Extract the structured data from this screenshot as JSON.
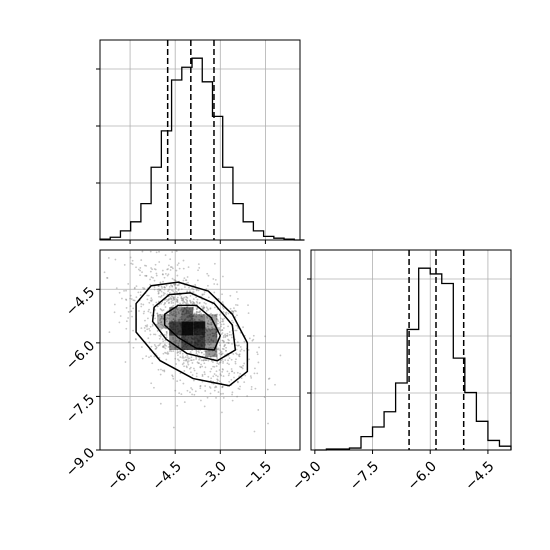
{
  "chart_data": [
    {
      "type": "histogram",
      "panel": "top-left",
      "x": [
        -7.0,
        -6.66,
        -6.32,
        -5.98,
        -5.64,
        -5.3,
        -4.96,
        -4.62,
        -4.28,
        -3.94,
        -3.6,
        -3.26,
        -2.92,
        -2.58,
        -2.24,
        -1.9,
        -1.56,
        -1.22,
        -0.88,
        -0.54
      ],
      "values": [
        0.5,
        1.5,
        5,
        10,
        20,
        40,
        60,
        88,
        95,
        100,
        87,
        68,
        40,
        20,
        10,
        5,
        2,
        1,
        0.5,
        0
      ],
      "xlim": [
        -7.0,
        -0.35
      ],
      "quantile_lines": [
        -4.75,
        -3.98,
        -3.21
      ],
      "grid": true,
      "y_ticks_unlabeled": 3
    },
    {
      "type": "heatmap",
      "panel": "bottom-left",
      "xlim": [
        -7.0,
        -0.35
      ],
      "ylim": [
        -9.0,
        -3.4
      ],
      "x_ticks": [
        "−6.0",
        "−4.5",
        "−3.0",
        "−1.5"
      ],
      "x_tick_values": [
        -6.0,
        -4.5,
        -3.0,
        -1.5
      ],
      "y_ticks": [
        "−4.5",
        "−6.0",
        "−7.5",
        "−9.0"
      ],
      "y_tick_values": [
        -4.5,
        -6.0,
        -7.5,
        -9.0
      ],
      "grid": true,
      "center": [
        -4.0,
        -5.6
      ],
      "contours": [
        [
          [
            -5.8,
            -4.9
          ],
          [
            -5.3,
            -4.4
          ],
          [
            -4.4,
            -4.3
          ],
          [
            -3.4,
            -4.55
          ],
          [
            -2.6,
            -5.2
          ],
          [
            -2.1,
            -6.0
          ],
          [
            -2.1,
            -6.8
          ],
          [
            -2.7,
            -7.2
          ],
          [
            -3.9,
            -7.0
          ],
          [
            -5.0,
            -6.5
          ],
          [
            -5.8,
            -5.7
          ]
        ],
        [
          [
            -5.2,
            -5.0
          ],
          [
            -4.7,
            -4.65
          ],
          [
            -4.0,
            -4.6
          ],
          [
            -3.2,
            -4.9
          ],
          [
            -2.6,
            -5.5
          ],
          [
            -2.5,
            -6.2
          ],
          [
            -3.1,
            -6.5
          ],
          [
            -4.1,
            -6.3
          ],
          [
            -4.8,
            -5.9
          ],
          [
            -5.25,
            -5.4
          ]
        ],
        [
          [
            -4.85,
            -5.2
          ],
          [
            -4.4,
            -4.95
          ],
          [
            -3.8,
            -4.95
          ],
          [
            -3.3,
            -5.3
          ],
          [
            -3.0,
            -5.8
          ],
          [
            -3.2,
            -6.2
          ],
          [
            -3.8,
            -6.15
          ],
          [
            -4.4,
            -5.85
          ],
          [
            -4.85,
            -5.5
          ]
        ]
      ]
    },
    {
      "type": "histogram",
      "panel": "bottom-right",
      "x": [
        -9.0,
        -8.7,
        -8.4,
        -8.1,
        -7.8,
        -7.5,
        -7.2,
        -6.9,
        -6.6,
        -6.3,
        -6.0,
        -5.7,
        -5.4,
        -5.1,
        -4.8,
        -4.5,
        -4.2
      ],
      "values": [
        0,
        0.5,
        0.5,
        1,
        7,
        12,
        20,
        35,
        63,
        95,
        92,
        87,
        48,
        30,
        15,
        5,
        2
      ],
      "xlim": [
        -9.1,
        -3.9
      ],
      "quantile_lines": [
        -6.55,
        -5.85,
        -5.13
      ],
      "x_ticks": [
        "−9.0",
        "−7.5",
        "−6.0",
        "−4.5"
      ],
      "x_tick_values": [
        -9.0,
        -7.5,
        -6.0,
        -4.5
      ],
      "grid": true,
      "y_ticks_unlabeled": 3
    }
  ]
}
